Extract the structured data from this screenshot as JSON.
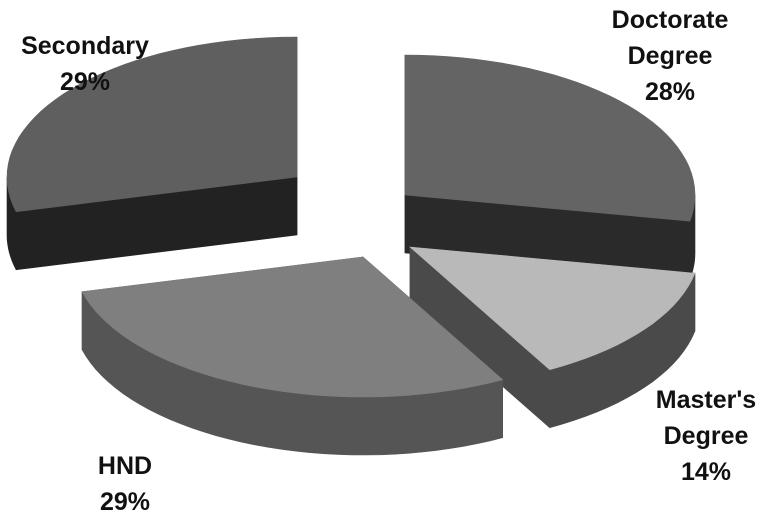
{
  "chart_data": {
    "type": "pie",
    "style": "3d-exploded",
    "categories": [
      "Doctorate Degree",
      "Master's Degree",
      "HND",
      "Secondary"
    ],
    "values": [
      28,
      14,
      29,
      29
    ],
    "unit": "%",
    "labels": [
      {
        "lines": [
          "Doctorate",
          "Degree"
        ],
        "pct": "28%"
      },
      {
        "lines": [
          "Master's",
          "Degree"
        ],
        "pct": "14%"
      },
      {
        "lines": [
          "HND"
        ],
        "pct": "29%"
      },
      {
        "lines": [
          "Secondary"
        ],
        "pct": "29%"
      }
    ],
    "colors": {
      "doctorate_top": "#646464",
      "doctorate_side": "#2a2a2a",
      "masters_top": "#b9b9b9",
      "masters_side": "#4a4a4a",
      "hnd_top": "#7f7f7f",
      "hnd_side": "#555555",
      "secondary_top": "#5f5f5f",
      "secondary_side": "#222222"
    }
  }
}
